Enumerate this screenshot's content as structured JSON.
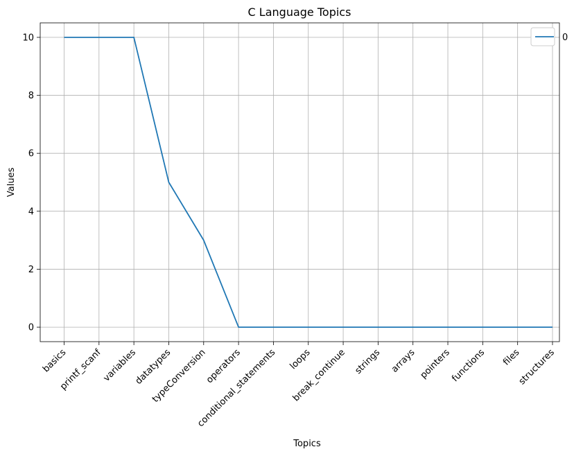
{
  "chart_data": {
    "type": "line",
    "title": "C Language Topics",
    "xlabel": "Topics",
    "ylabel": "Values",
    "categories": [
      "basics",
      "printf_scanf",
      "variables",
      "datatypes",
      "typeConversion",
      "operators",
      "conditional_statements",
      "loops",
      "break_continue",
      "strings",
      "arrays",
      "pointers",
      "functions",
      "files",
      "structures"
    ],
    "series": [
      {
        "name": "0",
        "values": [
          10,
          10,
          10,
          5,
          3,
          0,
          0,
          0,
          0,
          0,
          0,
          0,
          0,
          0,
          0
        ]
      }
    ],
    "ylim": [
      -0.5,
      10.5
    ],
    "yticks": [
      0,
      2,
      4,
      6,
      8,
      10
    ],
    "grid": true,
    "legend_position": "upper right",
    "colors": {
      "series": "#1f77b4",
      "grid": "#b0b0b0",
      "axis": "#000000"
    }
  }
}
